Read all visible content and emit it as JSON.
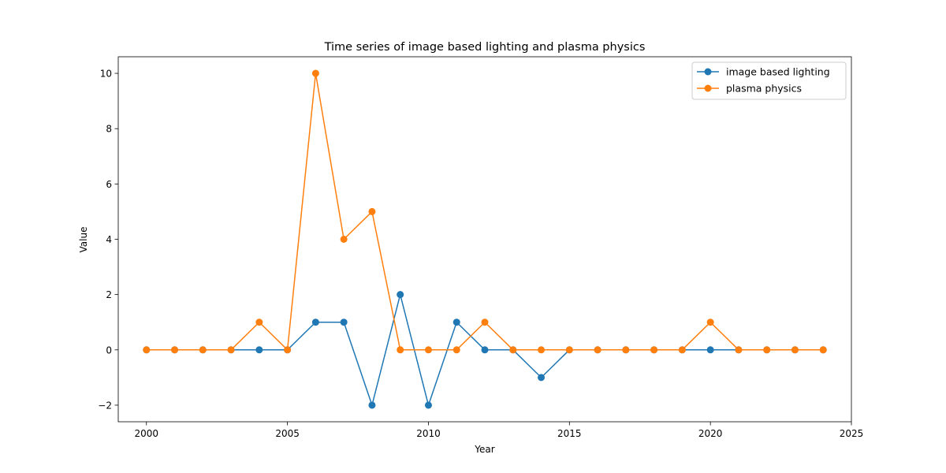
{
  "chart_data": {
    "type": "line",
    "title": "Time series of image based lighting and plasma physics",
    "xlabel": "Year",
    "ylabel": "Value",
    "xlim": [
      1999,
      2025
    ],
    "ylim": [
      -2.6,
      10.6
    ],
    "xticks": [
      2000,
      2005,
      2010,
      2015,
      2020,
      2025
    ],
    "yticks": [
      -2,
      0,
      2,
      4,
      6,
      8,
      10
    ],
    "ytick_labels": [
      "−2",
      "0",
      "2",
      "4",
      "6",
      "8",
      "10"
    ],
    "grid": false,
    "legend_position": "top-right",
    "x": [
      2000,
      2001,
      2002,
      2003,
      2004,
      2005,
      2006,
      2007,
      2008,
      2009,
      2010,
      2011,
      2012,
      2013,
      2014,
      2015,
      2016,
      2017,
      2018,
      2019,
      2020,
      2021,
      2022,
      2023,
      2024
    ],
    "series": [
      {
        "name": "image based lighting",
        "color": "#1f77b4",
        "values": [
          0,
          0,
          0,
          0,
          0,
          0,
          1,
          1,
          -2,
          2,
          -2,
          1,
          0,
          0,
          -1,
          0,
          0,
          0,
          0,
          0,
          0,
          0,
          0,
          0,
          0
        ]
      },
      {
        "name": "plasma physics",
        "color": "#ff7f0e",
        "values": [
          0,
          0,
          0,
          0,
          1,
          0,
          10,
          4,
          5,
          0,
          0,
          0,
          1,
          0,
          0,
          0,
          0,
          0,
          0,
          0,
          1,
          0,
          0,
          0,
          0
        ]
      }
    ]
  }
}
